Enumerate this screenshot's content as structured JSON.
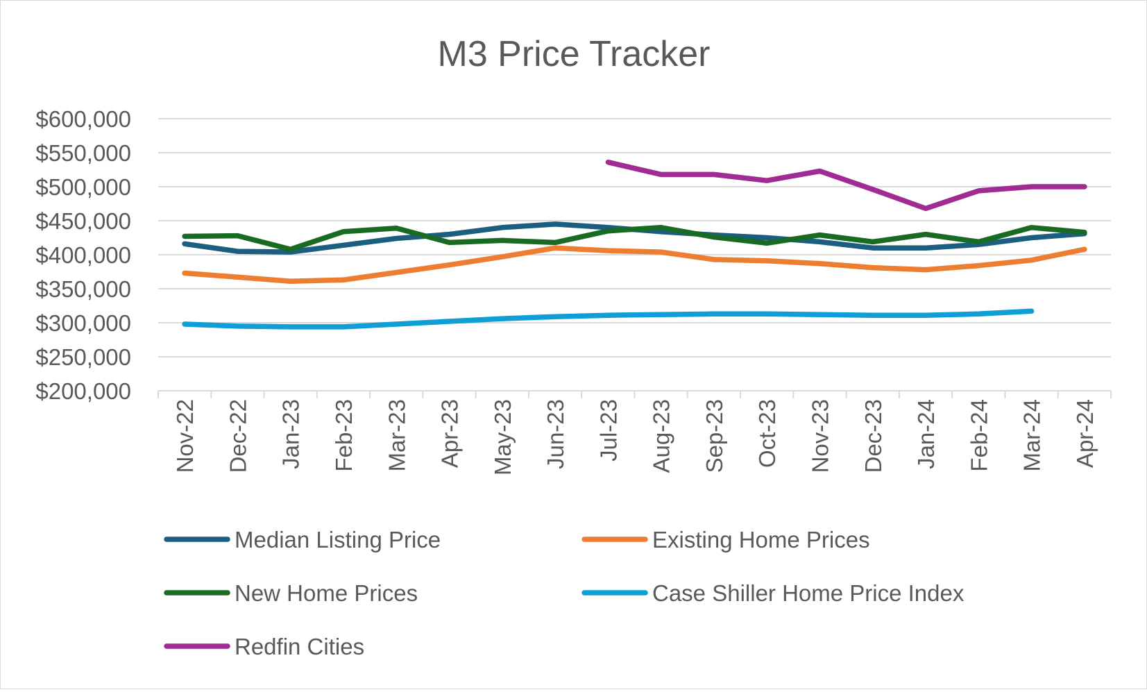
{
  "chart_data": {
    "type": "line",
    "title": "M3 Price Tracker",
    "xlabel": "",
    "ylabel": "",
    "ylim": [
      200000,
      600000
    ],
    "ytick_step": 50000,
    "y_tick_labels": [
      "$200,000",
      "$250,000",
      "$300,000",
      "$350,000",
      "$400,000",
      "$450,000",
      "$500,000",
      "$550,000",
      "$600,000"
    ],
    "grid": true,
    "legend_position": "bottom",
    "categories": [
      "Nov-22",
      "Dec-22",
      "Jan-23",
      "Feb-23",
      "Mar-23",
      "Apr-23",
      "May-23",
      "Jun-23",
      "Jul-23",
      "Aug-23",
      "Sep-23",
      "Oct-23",
      "Nov-23",
      "Dec-23",
      "Jan-24",
      "Feb-24",
      "Mar-24",
      "Apr-24"
    ],
    "series": [
      {
        "name": "Median Listing Price",
        "color": "#1b5e80",
        "values": [
          416000,
          405000,
          404000,
          414000,
          424000,
          430000,
          440000,
          445000,
          440000,
          434000,
          429000,
          425000,
          419000,
          410000,
          410000,
          415000,
          425000,
          431000
        ]
      },
      {
        "name": "Existing Home Prices",
        "color": "#ed7d31",
        "values": [
          373000,
          367000,
          361000,
          363000,
          374000,
          385000,
          397000,
          410000,
          406000,
          404000,
          393000,
          391000,
          387000,
          381000,
          378000,
          384000,
          392000,
          408000
        ]
      },
      {
        "name": "New Home Prices",
        "color": "#196b24",
        "values": [
          427000,
          428000,
          408000,
          434000,
          439000,
          418000,
          421000,
          418000,
          435000,
          440000,
          426000,
          417000,
          429000,
          419000,
          430000,
          419000,
          440000,
          433000
        ]
      },
      {
        "name": "Case Shiller Home Price Index",
        "color": "#0f9ed5",
        "values": [
          298000,
          295000,
          294000,
          294000,
          298000,
          302000,
          306000,
          309000,
          311000,
          312000,
          313000,
          313000,
          312000,
          311000,
          311000,
          313000,
          317000,
          null
        ]
      },
      {
        "name": "Redfin Cities",
        "color": "#a02b93",
        "values": [
          null,
          null,
          null,
          null,
          null,
          null,
          null,
          null,
          536000,
          518000,
          518000,
          509000,
          523000,
          496000,
          468000,
          494000,
          500000,
          500000
        ]
      }
    ]
  }
}
